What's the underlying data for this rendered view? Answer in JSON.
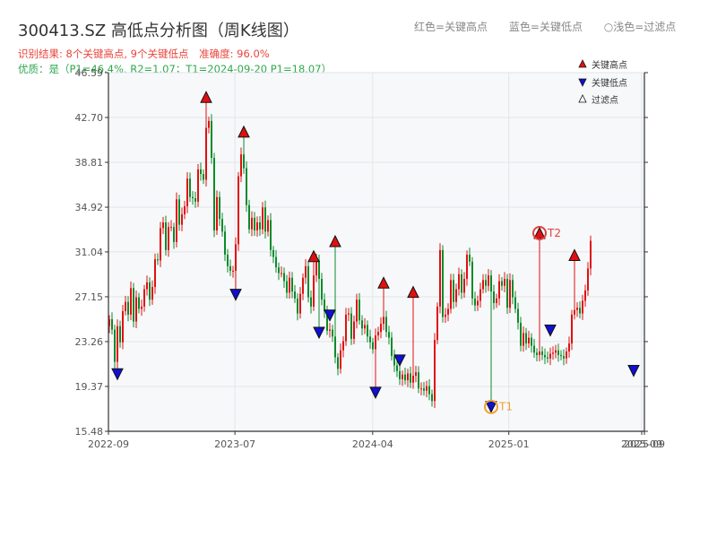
{
  "header": {
    "title": "300413.SZ 高低点分析图（周K线图）",
    "legend_high": "红色=关键高点",
    "legend_low": "蓝色=关键低点",
    "legend_filtered": "○浅色=过滤点",
    "result_label": "识别结果: 8个关键高点, 9个关键低点",
    "accuracy_label": "准确度: 96.0%",
    "quality_label": "优质：是（P1=46.4%, R2=1.07；T1=2024-09-20 P1=18.07）"
  },
  "colors": {
    "up": "#e01010",
    "down": "#0a8a2a",
    "high_marker": "#e01010",
    "low_marker": "#1010d0",
    "t_marker": "#f0a030",
    "t2_label": "#e04040",
    "panel_bg": "#f7f8fa"
  },
  "chart_data": {
    "type": "candlestick",
    "ylim": [
      15.48,
      46.59
    ],
    "yticks": [
      "15.48",
      "19.37",
      "23.26",
      "27.15",
      "31.04",
      "34.92",
      "38.81",
      "42.70",
      "46.59"
    ],
    "xticks": [
      "2022-09",
      "2023-07",
      "2024-04",
      "2025-01",
      "2025-09",
      "2025-09"
    ],
    "xtick_pos": [
      0,
      0.236,
      0.493,
      0.747,
      0.995,
      1.0
    ],
    "legend": [
      "关键高点",
      "关键低点",
      "过滤点"
    ],
    "closes": [
      25.2,
      24.3,
      21.5,
      24.6,
      23.2,
      25.9,
      26.7,
      25.6,
      27.9,
      25.0,
      27.1,
      26.1,
      26.3,
      27.8,
      28.4,
      26.9,
      28.0,
      30.4,
      30.3,
      33.1,
      33.6,
      31.2,
      33.2,
      33.2,
      31.9,
      35.6,
      33.4,
      34.3,
      35.0,
      37.4,
      35.8,
      35.7,
      35.4,
      38.2,
      37.8,
      37.3,
      41.8,
      42.4,
      39.2,
      32.9,
      35.8,
      33.9,
      32.8,
      30.8,
      29.8,
      29.4,
      29.4,
      31.7,
      37.6,
      39.5,
      38.3,
      35.1,
      33.0,
      34.0,
      32.9,
      33.6,
      33.0,
      34.9,
      32.8,
      33.8,
      31.2,
      30.6,
      29.7,
      29.2,
      29.2,
      28.5,
      27.5,
      28.8,
      27.6,
      27.0,
      25.7,
      27.4,
      28.8,
      29.8,
      27.1,
      26.3,
      29.0,
      30.3,
      28.7,
      26.9,
      25.9,
      24.2,
      24.3,
      23.7,
      21.9,
      20.9,
      22.5,
      23.3,
      25.6,
      25.7,
      23.5,
      25.0,
      26.9,
      25.1,
      24.4,
      24.7,
      23.7,
      23.2,
      22.6,
      23.8,
      24.1,
      24.8,
      25.4,
      24.1,
      23.6,
      22.0,
      21.2,
      20.7,
      20.0,
      20.4,
      19.9,
      20.5,
      19.7,
      20.3,
      20.6,
      19.2,
      19.2,
      19.0,
      19.4,
      18.7,
      18.1,
      23.4,
      26.3,
      31.2,
      25.4,
      25.6,
      26.1,
      28.6,
      26.7,
      27.8,
      29.1,
      27.5,
      28.7,
      30.8,
      30.2,
      27.0,
      26.4,
      26.8,
      27.8,
      28.6,
      28.1,
      29.0,
      27.6,
      26.6,
      27.0,
      28.5,
      28.1,
      28.7,
      26.2,
      28.6,
      27.1,
      26.1,
      24.9,
      22.9,
      24.0,
      23.1,
      23.6,
      22.9,
      22.3,
      22.1,
      22.4,
      22.1,
      21.9,
      21.8,
      22.2,
      22.3,
      22.5,
      22.1,
      22.0,
      21.8,
      22.4,
      23.1,
      25.6,
      26.0,
      26.2,
      25.7,
      26.8,
      27.7,
      29.6,
      32.0
    ],
    "key_highs": [
      {
        "idx": 36,
        "value": 44.0
      },
      {
        "idx": 50,
        "value": 41.0
      },
      {
        "idx": 76,
        "value": 30.2
      },
      {
        "idx": 84,
        "value": 31.5
      },
      {
        "idx": 102,
        "value": 27.9
      },
      {
        "idx": 113,
        "value": 27.1
      },
      {
        "idx": 160,
        "value": 32.2
      },
      {
        "idx": 173,
        "value": 30.3
      }
    ],
    "key_lows": [
      {
        "idx": 3,
        "value": 20.9
      },
      {
        "idx": 47,
        "value": 27.8
      },
      {
        "idx": 78,
        "value": 24.5
      },
      {
        "idx": 82,
        "value": 26.0
      },
      {
        "idx": 99,
        "value": 19.3
      },
      {
        "idx": 108,
        "value": 22.1
      },
      {
        "idx": 142,
        "value": 18.07
      },
      {
        "idx": 164,
        "value": 24.7
      },
      {
        "idx": 195,
        "value": 21.2
      }
    ],
    "t_points": [
      {
        "label": "T1",
        "idx": 142,
        "value": 18.07
      },
      {
        "label": "T2",
        "idx": 160,
        "value": 32.2
      }
    ]
  }
}
